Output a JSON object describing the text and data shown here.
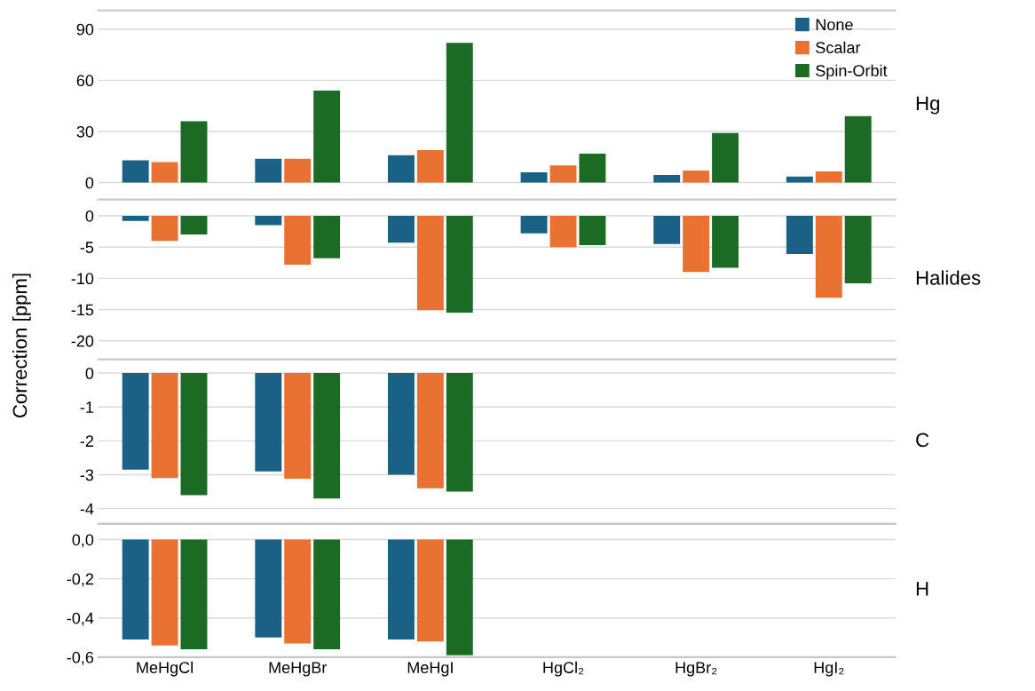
{
  "chart_data": [
    {
      "type": "bar",
      "ylabel": "Correction [ppm]",
      "annotations": [
        "Hg"
      ],
      "categories": [
        null,
        null,
        null,
        null,
        null,
        null
      ],
      "series": [
        {
          "name": "None",
          "color": "#1a6185",
          "values": [
            13,
            14,
            16,
            6,
            4.5,
            3.5
          ]
        },
        {
          "name": "Scalar",
          "color": "#e97132",
          "values": [
            12,
            14,
            19,
            10,
            7,
            6.5
          ]
        },
        {
          "name": "Spin-Orbit",
          "color": "#1b6b25",
          "values": [
            36,
            54,
            82,
            17,
            29,
            39
          ]
        }
      ],
      "ylim": [
        -10,
        101
      ],
      "yticks": [
        0,
        30,
        60,
        90
      ],
      "grid": "y",
      "legend": "top right",
      "tick_labels": "y"
    },
    {
      "type": "bar",
      "annotations": [
        "Halides"
      ],
      "categories": [
        null,
        null,
        null,
        null,
        null,
        null
      ],
      "series": [
        {
          "color": "#1a6185",
          "values": [
            -0.8,
            -1.5,
            -4.3,
            -2.8,
            -4.5,
            -6.1
          ]
        },
        {
          "color": "#e97132",
          "values": [
            -4,
            -7.8,
            -15.1,
            -5,
            -9,
            -13.1
          ]
        },
        {
          "color": "#1b6b25",
          "values": [
            -3,
            -6.8,
            -15.5,
            -4.7,
            -8.3,
            -10.8
          ]
        }
      ],
      "ylim": [
        -23,
        2.6
      ],
      "yticks": [
        {
          "value": 0,
          "label": "0"
        },
        {
          "value": -5,
          "label": "-5"
        },
        {
          "value": -10,
          "label": "-10"
        },
        {
          "value": -15,
          "label": "-15"
        },
        {
          "value": -20,
          "label": "-20"
        }
      ],
      "grid": "y",
      "tick_labels": "y"
    },
    {
      "type": "bar",
      "annotations": [
        "C"
      ],
      "categories": [
        null,
        null,
        null,
        null,
        null,
        null
      ],
      "series": [
        {
          "color": "#1a6185",
          "values": [
            -2.85,
            -2.9,
            -3.0,
            null,
            null,
            null
          ]
        },
        {
          "color": "#e97132",
          "values": [
            -3.1,
            -3.12,
            -3.4,
            null,
            null,
            null
          ]
        },
        {
          "color": "#1b6b25",
          "values": [
            -3.6,
            -3.7,
            -3.5,
            null,
            null,
            null
          ]
        }
      ],
      "ylim": [
        -4.45,
        0.4
      ],
      "yticks": [
        {
          "value": 0,
          "label": "0"
        },
        {
          "value": -1,
          "label": "-1"
        },
        {
          "value": -2,
          "label": "-2"
        },
        {
          "value": -3,
          "label": "-3"
        },
        {
          "value": -4,
          "label": "-4"
        }
      ],
      "grid": "y",
      "tick_labels": "y"
    },
    {
      "type": "bar",
      "annotations": [
        "H"
      ],
      "categories": [
        "MeHgCl",
        "MeHgBr",
        "MeHgI",
        "HgCl₂",
        "HgBr₂",
        "HgI₂"
      ],
      "series": [
        {
          "color": "#1a6185",
          "values": [
            -0.51,
            -0.5,
            -0.51,
            null,
            null,
            null
          ]
        },
        {
          "color": "#e97132",
          "values": [
            -0.54,
            -0.53,
            -0.52,
            null,
            null,
            null
          ]
        },
        {
          "color": "#1b6b25",
          "values": [
            -0.56,
            -0.56,
            -0.59,
            null,
            null,
            null
          ]
        }
      ],
      "ylim": [
        -0.6,
        0.08
      ],
      "yticks": [
        {
          "value": 0,
          "label": "0,0"
        },
        {
          "value": -0.2,
          "label": "-0,2"
        },
        {
          "value": -0.4,
          "label": "-0,4"
        },
        {
          "value": -0.6,
          "label": "-0,6"
        }
      ],
      "grid": "y"
    }
  ]
}
